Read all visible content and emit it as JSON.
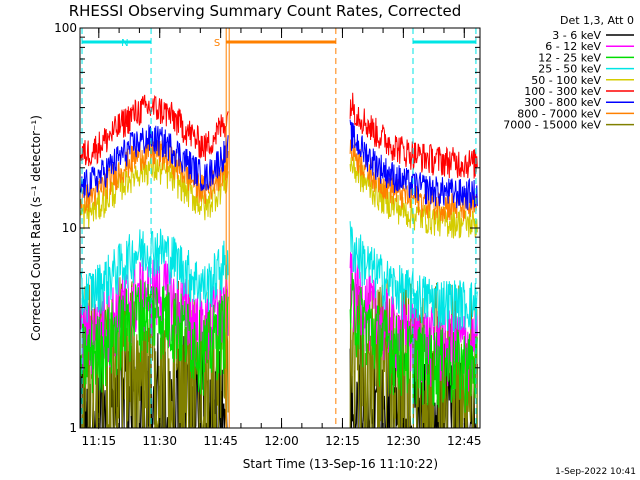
{
  "chart_data": {
    "type": "line",
    "title": "RHESSI Observing Summary Count Rates, Corrected",
    "xlabel": "Start Time (13-Sep-16 11:10:22)",
    "ylabel": "Corrected Count Rate (s⁻¹ detector⁻¹)",
    "yscale": "log",
    "ylim": [
      1,
      100
    ],
    "xlim_minutes": [
      0,
      98.5
    ],
    "y_tick_labels": [
      "1",
      "10",
      "100"
    ],
    "x_tick_labels": [
      "11:15",
      "11:30",
      "11:45",
      "12:00",
      "12:15",
      "12:30",
      "12:45"
    ],
    "x_tick_minutes": [
      4.63,
      19.63,
      34.63,
      49.63,
      64.63,
      79.63,
      94.63
    ],
    "legend_header": "Det 1,3, Att 0",
    "series": [
      {
        "name": "3 - 6 keV",
        "color": "#000000",
        "approx_level": 1.3
      },
      {
        "name": "6 - 12 keV",
        "color": "#ff00ff",
        "approx_level": 5
      },
      {
        "name": "12 - 25 keV",
        "color": "#00dd00",
        "approx_level": 4
      },
      {
        "name": "25 - 50 keV",
        "color": "#00e5e5",
        "approx_level": 8
      },
      {
        "name": "50 - 100 keV",
        "color": "#d4cc00",
        "approx_level": 20
      },
      {
        "name": "100 - 300 keV",
        "color": "#ff0000",
        "approx_level": 40
      },
      {
        "name": "300 - 800 keV",
        "color": "#0000ff",
        "approx_level": 28
      },
      {
        "name": "800 - 7000 keV",
        "color": "#ff8000",
        "approx_level": 24
      },
      {
        "name": "7000 - 15000 keV",
        "color": "#808000",
        "approx_level": 2.5
      }
    ],
    "annotations": [
      {
        "label": "N",
        "color": "#00e5e5",
        "from_minutes": 0.5,
        "to_minutes": 17.5,
        "kind": "night"
      },
      {
        "label": "S",
        "color": "#ff8000",
        "from_minutes": 36.0,
        "to_minutes": 63.0,
        "kind": "saa"
      },
      {
        "label": "",
        "color": "#00e5e5",
        "from_minutes": 82.0,
        "to_minutes": 97.5,
        "kind": "night"
      }
    ],
    "gaps_minutes": [
      [
        36.5,
        66.5
      ]
    ]
  },
  "footer": {
    "timestamp": "1-Sep-2022 10:41"
  }
}
